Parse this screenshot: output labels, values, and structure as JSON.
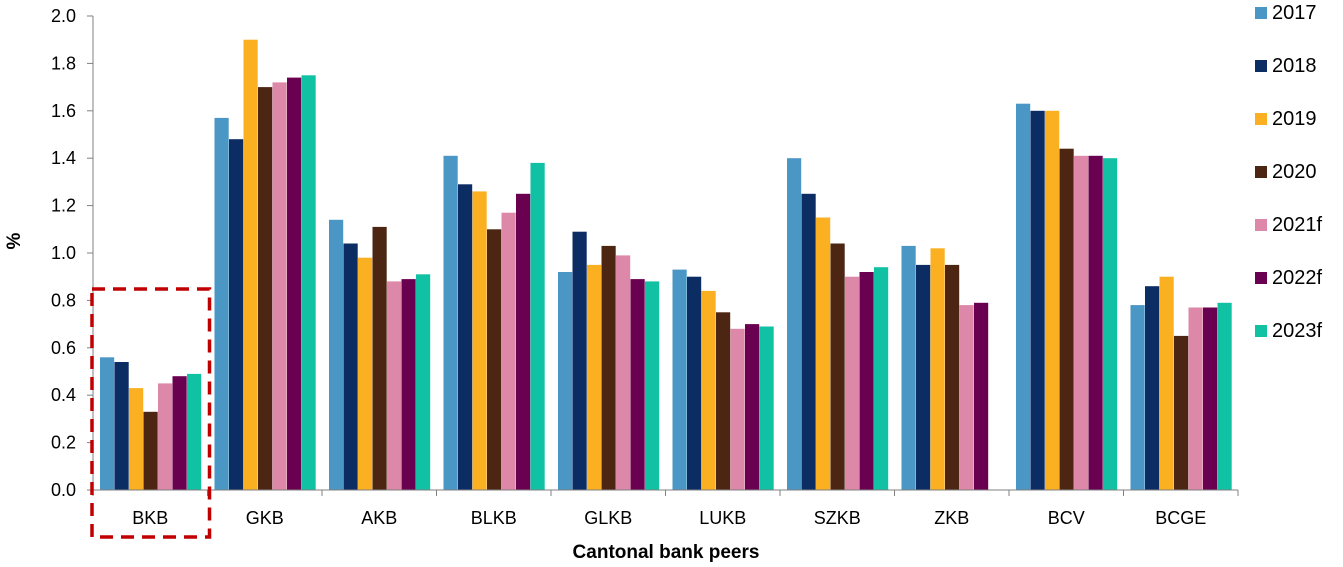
{
  "chart_data": {
    "type": "bar",
    "xlabel": "Cantonal bank peers",
    "ylabel": "%",
    "ylim": [
      0,
      2.0
    ],
    "yticks": [
      "0.0",
      "0.2",
      "0.4",
      "0.6",
      "0.8",
      "1.0",
      "1.2",
      "1.4",
      "1.6",
      "1.8",
      "2.0"
    ],
    "grid": false,
    "legend_position": "right",
    "categories": [
      "BKB",
      "GKB",
      "AKB",
      "BLKB",
      "GLKB",
      "LUKB",
      "SZKB",
      "ZKB",
      "BCV",
      "BCGE"
    ],
    "highlighted_category": "BKB",
    "highlight_color": "#c00000",
    "series": [
      {
        "name": "2017",
        "color": "#4a96c4",
        "values": [
          0.56,
          1.57,
          1.14,
          1.41,
          0.92,
          0.93,
          1.4,
          1.03,
          1.63,
          0.78
        ]
      },
      {
        "name": "2018",
        "color": "#0b2d63",
        "values": [
          0.54,
          1.48,
          1.04,
          1.29,
          1.09,
          0.9,
          1.25,
          0.95,
          1.6,
          0.86
        ]
      },
      {
        "name": "2019",
        "color": "#fbb021",
        "values": [
          0.43,
          1.9,
          0.98,
          1.26,
          0.95,
          0.84,
          1.15,
          1.02,
          1.6,
          0.9
        ]
      },
      {
        "name": "2020",
        "color": "#4c2612",
        "values": [
          0.33,
          1.7,
          1.11,
          1.1,
          1.03,
          0.75,
          1.04,
          0.95,
          1.44,
          0.65
        ]
      },
      {
        "name": "2021f",
        "color": "#dd88a8",
        "values": [
          0.45,
          1.72,
          0.88,
          1.17,
          0.99,
          0.68,
          0.9,
          0.78,
          1.41,
          0.77
        ]
      },
      {
        "name": "2022f",
        "color": "#6a0050",
        "values": [
          0.48,
          1.74,
          0.89,
          1.25,
          0.89,
          0.7,
          0.92,
          0.79,
          1.41,
          0.77
        ]
      },
      {
        "name": "2023f",
        "color": "#10c1a4",
        "values": [
          0.49,
          1.75,
          0.91,
          1.38,
          0.88,
          0.69,
          0.94,
          null,
          1.4,
          0.79
        ]
      }
    ]
  }
}
